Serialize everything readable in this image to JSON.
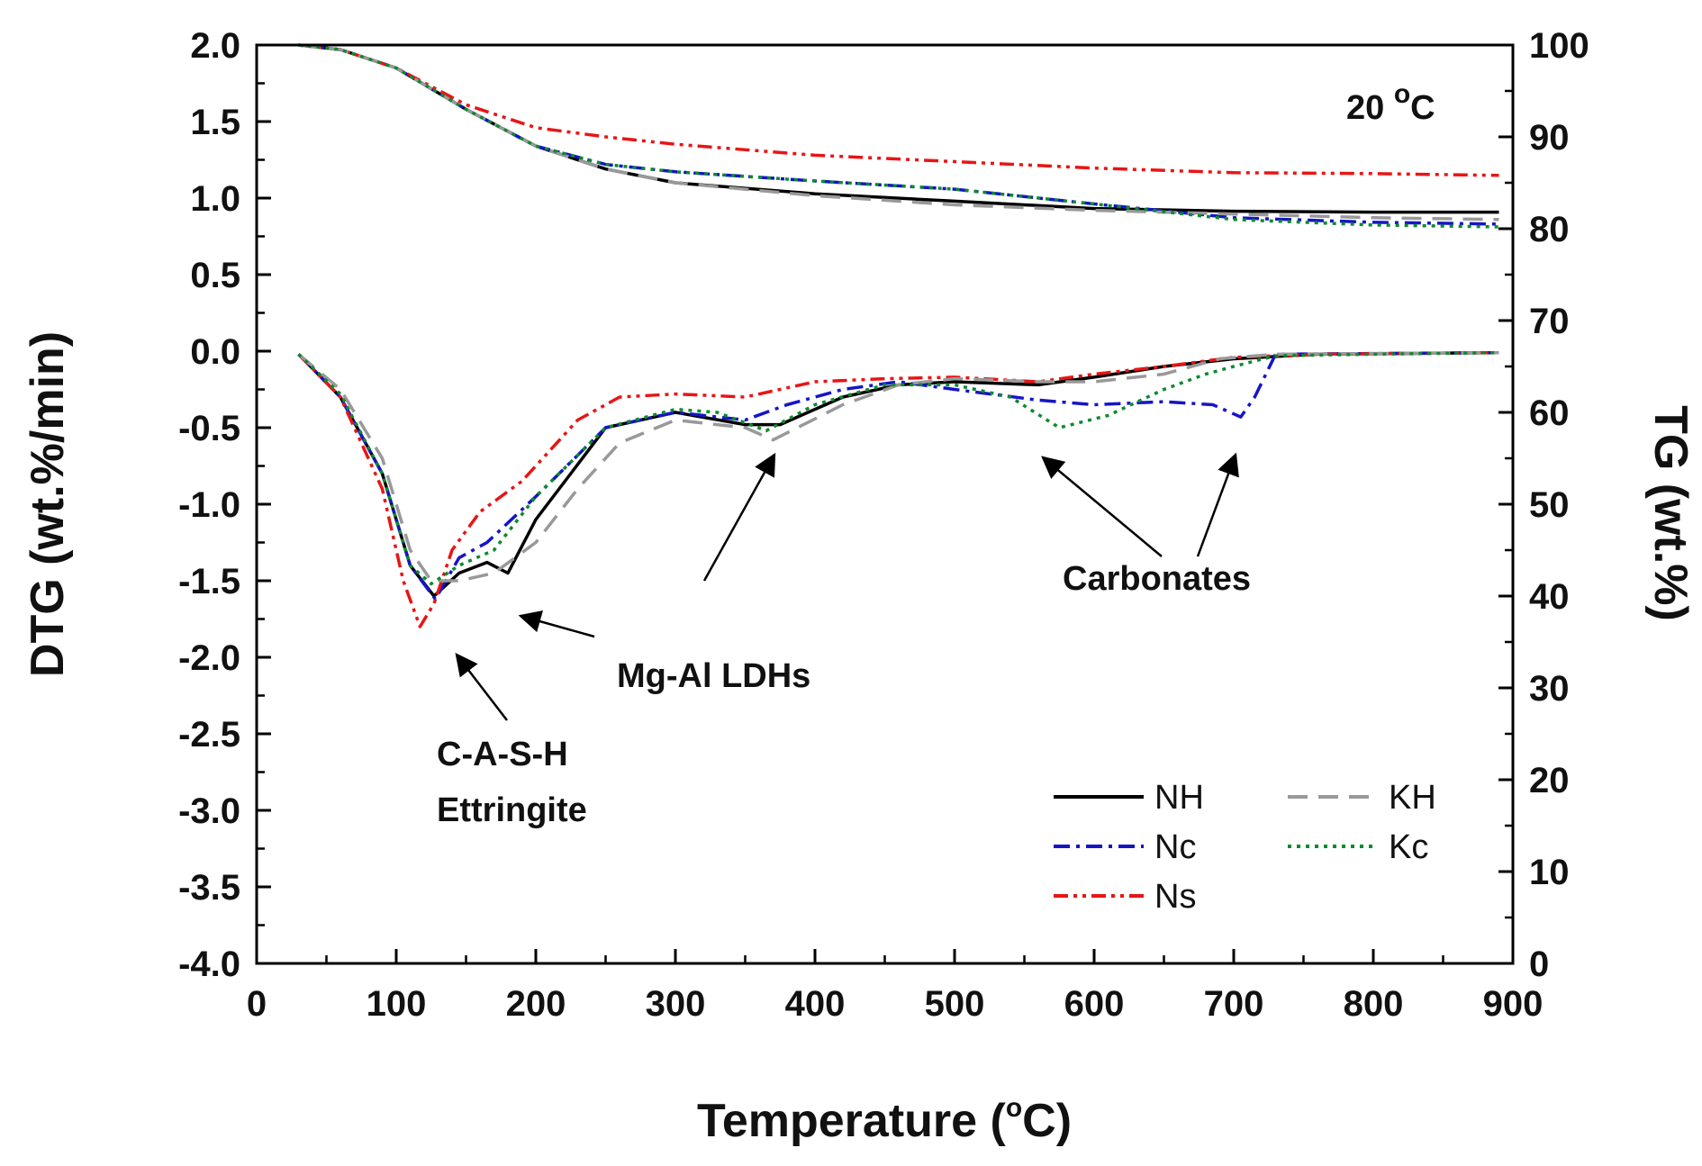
{
  "chart_data": {
    "type": "line",
    "x_axis": {
      "label": "Temperature (",
      "label_sup": "o",
      "label_tail": "C)",
      "min": 0,
      "max": 900,
      "ticks": [
        "0",
        "100",
        "200",
        "300",
        "400",
        "500",
        "600",
        "700",
        "800",
        "900"
      ]
    },
    "y_left": {
      "label": "DTG (wt.%/min)",
      "min": -4.0,
      "max": 2.0,
      "ticks": [
        "2.0",
        "1.5",
        "1.0",
        "0.5",
        "0.0",
        "-0.5",
        "-1.0",
        "-1.5",
        "-2.0",
        "-2.5",
        "-3.0",
        "-3.5",
        "-4.0"
      ]
    },
    "y_right": {
      "label": "TG (wt.%)",
      "min": 0,
      "max": 100,
      "ticks": [
        "100",
        "90",
        "80",
        "70",
        "60",
        "50",
        "40",
        "30",
        "20",
        "10",
        "0"
      ]
    },
    "condition": {
      "text": "20 ",
      "sup": "o",
      "tail": "C"
    },
    "annotations": {
      "cash_line1": "C-A-S-H",
      "cash_line2": "Ettringite",
      "ldh": "Mg-Al LDHs",
      "carbonates": "Carbonates"
    },
    "series": [
      {
        "name": "NH",
        "color": "#000000",
        "dash": "none",
        "tg": [
          [
            30,
            100
          ],
          [
            60,
            99.5
          ],
          [
            100,
            97.5
          ],
          [
            150,
            93
          ],
          [
            200,
            89
          ],
          [
            250,
            86.5
          ],
          [
            300,
            85
          ],
          [
            400,
            83.8
          ],
          [
            500,
            83
          ],
          [
            600,
            82.2
          ],
          [
            700,
            81.9
          ],
          [
            800,
            81.8
          ],
          [
            890,
            81.8
          ]
        ],
        "dtg": [
          [
            30,
            -0.02
          ],
          [
            60,
            -0.3
          ],
          [
            90,
            -0.8
          ],
          [
            110,
            -1.4
          ],
          [
            127,
            -1.6
          ],
          [
            145,
            -1.45
          ],
          [
            165,
            -1.38
          ],
          [
            180,
            -1.45
          ],
          [
            200,
            -1.1
          ],
          [
            225,
            -0.8
          ],
          [
            250,
            -0.5
          ],
          [
            300,
            -0.4
          ],
          [
            350,
            -0.48
          ],
          [
            375,
            -0.48
          ],
          [
            420,
            -0.3
          ],
          [
            460,
            -0.22
          ],
          [
            500,
            -0.2
          ],
          [
            560,
            -0.22
          ],
          [
            600,
            -0.17
          ],
          [
            650,
            -0.1
          ],
          [
            700,
            -0.05
          ],
          [
            760,
            -0.02
          ],
          [
            890,
            -0.01
          ]
        ]
      },
      {
        "name": "Nc",
        "color": "#1515c8",
        "dash": "18,7,4,7",
        "tg": [
          [
            30,
            100
          ],
          [
            60,
            99.5
          ],
          [
            100,
            97.5
          ],
          [
            150,
            93
          ],
          [
            200,
            89
          ],
          [
            250,
            87
          ],
          [
            300,
            86.2
          ],
          [
            400,
            85.2
          ],
          [
            500,
            84.3
          ],
          [
            600,
            82.7
          ],
          [
            700,
            81.2
          ],
          [
            800,
            80.7
          ],
          [
            890,
            80.5
          ]
        ],
        "dtg": [
          [
            30,
            -0.02
          ],
          [
            60,
            -0.3
          ],
          [
            90,
            -0.8
          ],
          [
            110,
            -1.4
          ],
          [
            128,
            -1.62
          ],
          [
            145,
            -1.35
          ],
          [
            165,
            -1.25
          ],
          [
            200,
            -0.95
          ],
          [
            250,
            -0.5
          ],
          [
            300,
            -0.4
          ],
          [
            350,
            -0.45
          ],
          [
            380,
            -0.35
          ],
          [
            420,
            -0.25
          ],
          [
            460,
            -0.2
          ],
          [
            500,
            -0.25
          ],
          [
            560,
            -0.32
          ],
          [
            600,
            -0.35
          ],
          [
            650,
            -0.33
          ],
          [
            685,
            -0.35
          ],
          [
            705,
            -0.43
          ],
          [
            715,
            -0.3
          ],
          [
            730,
            -0.02
          ],
          [
            890,
            -0.01
          ]
        ]
      },
      {
        "name": "Ns",
        "color": "#e81515",
        "dash": "16,6,4,6,4,6",
        "tg": [
          [
            30,
            100
          ],
          [
            60,
            99.5
          ],
          [
            100,
            97.5
          ],
          [
            150,
            93.5
          ],
          [
            200,
            91
          ],
          [
            250,
            90
          ],
          [
            300,
            89.2
          ],
          [
            400,
            88
          ],
          [
            500,
            87.3
          ],
          [
            600,
            86.6
          ],
          [
            700,
            86.1
          ],
          [
            800,
            86
          ],
          [
            890,
            85.8
          ]
        ],
        "dtg": [
          [
            30,
            -0.02
          ],
          [
            60,
            -0.3
          ],
          [
            90,
            -0.9
          ],
          [
            105,
            -1.5
          ],
          [
            117,
            -1.8
          ],
          [
            127,
            -1.65
          ],
          [
            140,
            -1.3
          ],
          [
            160,
            -1.05
          ],
          [
            190,
            -0.85
          ],
          [
            230,
            -0.45
          ],
          [
            260,
            -0.3
          ],
          [
            300,
            -0.28
          ],
          [
            350,
            -0.3
          ],
          [
            400,
            -0.2
          ],
          [
            450,
            -0.18
          ],
          [
            500,
            -0.17
          ],
          [
            560,
            -0.2
          ],
          [
            600,
            -0.15
          ],
          [
            650,
            -0.1
          ],
          [
            700,
            -0.04
          ],
          [
            760,
            -0.02
          ],
          [
            890,
            -0.01
          ]
        ]
      },
      {
        "name": "KH",
        "color": "#999999",
        "dash": "22,12",
        "tg": [
          [
            30,
            100
          ],
          [
            60,
            99.5
          ],
          [
            100,
            97.5
          ],
          [
            150,
            93
          ],
          [
            200,
            89
          ],
          [
            250,
            86.5
          ],
          [
            300,
            85
          ],
          [
            400,
            83.6
          ],
          [
            500,
            82.6
          ],
          [
            600,
            82
          ],
          [
            700,
            81.6
          ],
          [
            800,
            81.2
          ],
          [
            890,
            81
          ]
        ],
        "dtg": [
          [
            30,
            -0.02
          ],
          [
            60,
            -0.25
          ],
          [
            90,
            -0.7
          ],
          [
            110,
            -1.3
          ],
          [
            125,
            -1.5
          ],
          [
            145,
            -1.5
          ],
          [
            170,
            -1.45
          ],
          [
            200,
            -1.25
          ],
          [
            230,
            -0.9
          ],
          [
            260,
            -0.6
          ],
          [
            300,
            -0.45
          ],
          [
            350,
            -0.5
          ],
          [
            370,
            -0.58
          ],
          [
            420,
            -0.35
          ],
          [
            460,
            -0.22
          ],
          [
            500,
            -0.18
          ],
          [
            560,
            -0.2
          ],
          [
            600,
            -0.2
          ],
          [
            650,
            -0.15
          ],
          [
            690,
            -0.05
          ],
          [
            730,
            -0.02
          ],
          [
            890,
            -0.01
          ]
        ]
      },
      {
        "name": "Kc",
        "color": "#0e8a2e",
        "dash": "4,6",
        "tg": [
          [
            30,
            100
          ],
          [
            60,
            99.5
          ],
          [
            100,
            97.5
          ],
          [
            150,
            93
          ],
          [
            200,
            89
          ],
          [
            250,
            87
          ],
          [
            300,
            86.2
          ],
          [
            400,
            85.2
          ],
          [
            500,
            84.3
          ],
          [
            600,
            82.7
          ],
          [
            700,
            81
          ],
          [
            800,
            80.4
          ],
          [
            890,
            80.2
          ]
        ],
        "dtg": [
          [
            30,
            -0.02
          ],
          [
            60,
            -0.28
          ],
          [
            90,
            -0.8
          ],
          [
            110,
            -1.4
          ],
          [
            125,
            -1.52
          ],
          [
            145,
            -1.4
          ],
          [
            170,
            -1.3
          ],
          [
            200,
            -0.95
          ],
          [
            250,
            -0.5
          ],
          [
            300,
            -0.38
          ],
          [
            330,
            -0.4
          ],
          [
            365,
            -0.52
          ],
          [
            400,
            -0.35
          ],
          [
            450,
            -0.22
          ],
          [
            500,
            -0.22
          ],
          [
            540,
            -0.3
          ],
          [
            575,
            -0.5
          ],
          [
            610,
            -0.42
          ],
          [
            650,
            -0.25
          ],
          [
            680,
            -0.15
          ],
          [
            700,
            -0.1
          ],
          [
            730,
            -0.03
          ],
          [
            800,
            -0.02
          ],
          [
            890,
            -0.01
          ]
        ]
      }
    ]
  }
}
